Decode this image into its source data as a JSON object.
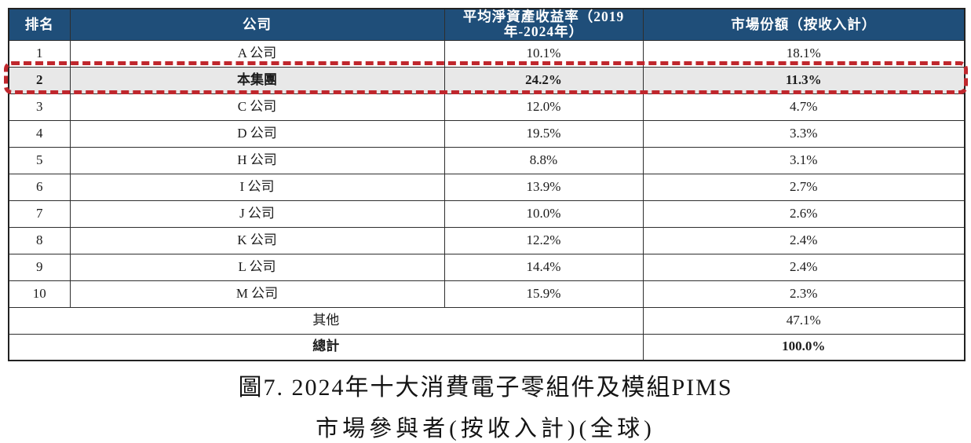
{
  "table": {
    "columns": [
      "排名",
      "公司",
      "平均淨資產收益率（2019年-2024年）",
      "市場份額（按收入計）"
    ],
    "rows": [
      {
        "rank": "1",
        "company": "A 公司",
        "roe": "10.1%",
        "share": "18.1%"
      },
      {
        "rank": "2",
        "company": "本集團",
        "roe": "24.2%",
        "share": "11.3%"
      },
      {
        "rank": "3",
        "company": "C 公司",
        "roe": "12.0%",
        "share": "4.7%"
      },
      {
        "rank": "4",
        "company": "D 公司",
        "roe": "19.5%",
        "share": "3.3%"
      },
      {
        "rank": "5",
        "company": "H 公司",
        "roe": "8.8%",
        "share": "3.1%"
      },
      {
        "rank": "6",
        "company": "I 公司",
        "roe": "13.9%",
        "share": "2.7%"
      },
      {
        "rank": "7",
        "company": "J 公司",
        "roe": "10.0%",
        "share": "2.6%"
      },
      {
        "rank": "8",
        "company": "K 公司",
        "roe": "12.2%",
        "share": "2.4%"
      },
      {
        "rank": "9",
        "company": "L 公司",
        "roe": "14.4%",
        "share": "2.4%"
      },
      {
        "rank": "10",
        "company": "M 公司",
        "roe": "15.9%",
        "share": "2.3%"
      }
    ],
    "others": {
      "label": "其他",
      "share": "47.1%"
    },
    "total": {
      "label": "總計",
      "share": "100.0%"
    }
  },
  "caption": {
    "line1": "圖7. 2024年十大消費電子零組件及模組PIMS",
    "line2": "市場參與者(按收入計)(全球)"
  },
  "colors": {
    "header_bg": "#1F4E79",
    "header_text": "#FFFFFF",
    "highlight_bg": "#E8E8E8",
    "highlight_border": "#C0272D",
    "grid": "#2E2E2E",
    "text": "#1C1C1C"
  }
}
